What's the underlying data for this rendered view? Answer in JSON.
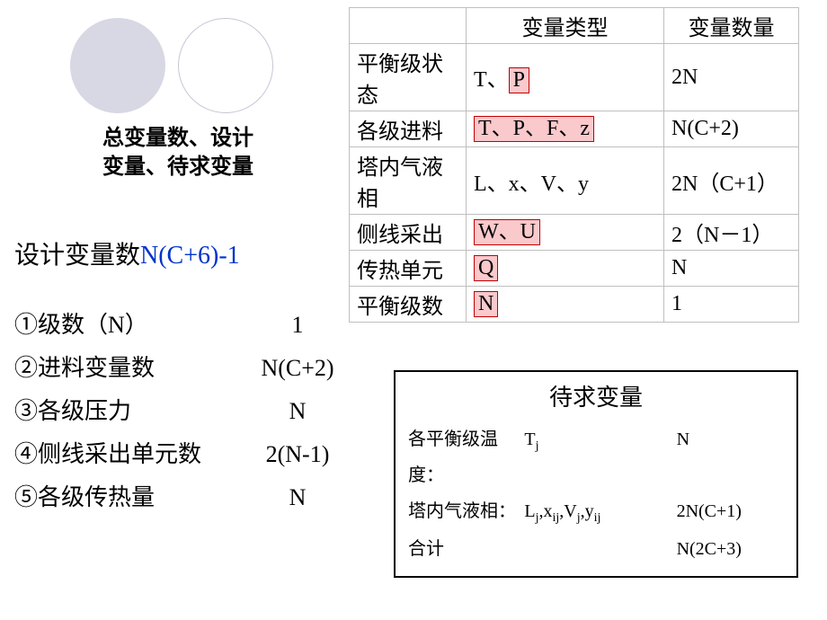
{
  "circles": {
    "filled_color": "#d8d7e4",
    "outline_border": "#c7c6d6"
  },
  "caption": {
    "line1": "总变量数、设计",
    "line2": "变量、待求变量"
  },
  "top_table": {
    "header": {
      "c1": "",
      "c2": "变量类型",
      "c3": "变量数量"
    },
    "rows": [
      {
        "label": "平衡级状态",
        "vtype_pre": "T、",
        "vtype_hl": "P",
        "vtype_post": "",
        "count": "2N"
      },
      {
        "label": "各级进料",
        "vtype_pre": "",
        "vtype_hl": "T、P、F、z",
        "vtype_post": "",
        "count": "N(C+2)"
      },
      {
        "label": "塔内气液相",
        "vtype_pre": "L、x、V、y",
        "vtype_hl": "",
        "vtype_post": "",
        "count": "2N（C+1）"
      },
      {
        "label": "侧线采出",
        "vtype_pre": "",
        "vtype_hl": "W、U",
        "vtype_post": "",
        "count": "2（N－1）"
      },
      {
        "label": "传热单元",
        "vtype_pre": "",
        "vtype_hl": "Q",
        "vtype_post": "",
        "count": "N"
      },
      {
        "label": "平衡级数",
        "vtype_pre": "",
        "vtype_hl": "N",
        "vtype_post": "",
        "count": "1"
      }
    ]
  },
  "design_var": {
    "label": "设计变量数",
    "formula": "N(C+6)-1"
  },
  "list": [
    {
      "n": "①",
      "label": "级数（N）",
      "value": "1"
    },
    {
      "n": "②",
      "label": "进料变量数",
      "value": "N(C+2)"
    },
    {
      "n": "③",
      "label": "各级压力",
      "value": "N"
    },
    {
      "n": "④",
      "label": "侧线采出单元数",
      "value": "2(N-1)"
    },
    {
      "n": "⑤",
      "label": "各级传热量",
      "value": "N"
    }
  ],
  "box": {
    "title": "待求变量",
    "rows": [
      {
        "l": "各平衡级温度：",
        "m_html": "T<sub>j</sub>",
        "r": "N"
      },
      {
        "l": "塔内气液相：",
        "m_html": "L<sub>j</sub>,x<sub>ij</sub>,V<sub>j</sub>,y<sub>ij</sub>",
        "r": "2N(C+1)"
      },
      {
        "l": "合计",
        "m_html": "",
        "r": "N(2C+3)"
      }
    ]
  }
}
